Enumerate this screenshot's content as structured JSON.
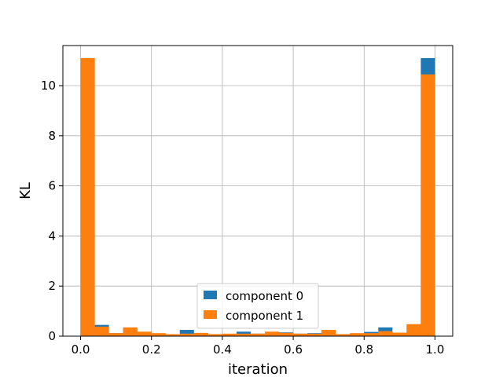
{
  "chart_data": {
    "type": "bar",
    "subtype": "histogram-overlay",
    "title": "",
    "xlabel": "iteration",
    "ylabel": "KL",
    "xlim": [
      -0.05,
      1.05
    ],
    "ylim": [
      0,
      11.6
    ],
    "xticks": [
      0.0,
      0.2,
      0.4,
      0.6,
      0.8,
      1.0
    ],
    "xtick_labels": [
      "0.0",
      "0.2",
      "0.4",
      "0.6",
      "0.8",
      "1.0"
    ],
    "yticks": [
      0,
      2,
      4,
      6,
      8,
      10
    ],
    "ytick_labels": [
      "0",
      "2",
      "4",
      "6",
      "8",
      "10"
    ],
    "grid": true,
    "legend_position": "lower center",
    "bin_edges": [
      0.0,
      0.04,
      0.08,
      0.12,
      0.16,
      0.2,
      0.24,
      0.28,
      0.32,
      0.36,
      0.4,
      0.44,
      0.48,
      0.52,
      0.56,
      0.6,
      0.64,
      0.68,
      0.72,
      0.76,
      0.8,
      0.84,
      0.88,
      0.92,
      0.96,
      1.0
    ],
    "series": [
      {
        "name": "component 0",
        "color": "#1f77b4",
        "values": [
          11.1,
          0.45,
          0.12,
          0.3,
          0.15,
          0.1,
          0.06,
          0.25,
          0.1,
          0.08,
          0.07,
          0.18,
          0.1,
          0.12,
          0.15,
          0.1,
          0.12,
          0.2,
          0.08,
          0.1,
          0.17,
          0.35,
          0.1,
          0.42,
          11.1
        ]
      },
      {
        "name": "component 1",
        "color": "#ff7f0e",
        "values": [
          11.1,
          0.38,
          0.12,
          0.35,
          0.18,
          0.12,
          0.08,
          0.1,
          0.13,
          0.08,
          0.1,
          0.1,
          0.1,
          0.18,
          0.13,
          0.1,
          0.1,
          0.25,
          0.08,
          0.12,
          0.12,
          0.2,
          0.14,
          0.48,
          10.45
        ]
      }
    ]
  },
  "legend": {
    "items": [
      {
        "label": "component 0",
        "color": "#1f77b4"
      },
      {
        "label": "component 1",
        "color": "#ff7f0e"
      }
    ]
  },
  "colors": {
    "grid": "#b0b0b0",
    "axes": "#000000",
    "background": "#ffffff"
  }
}
